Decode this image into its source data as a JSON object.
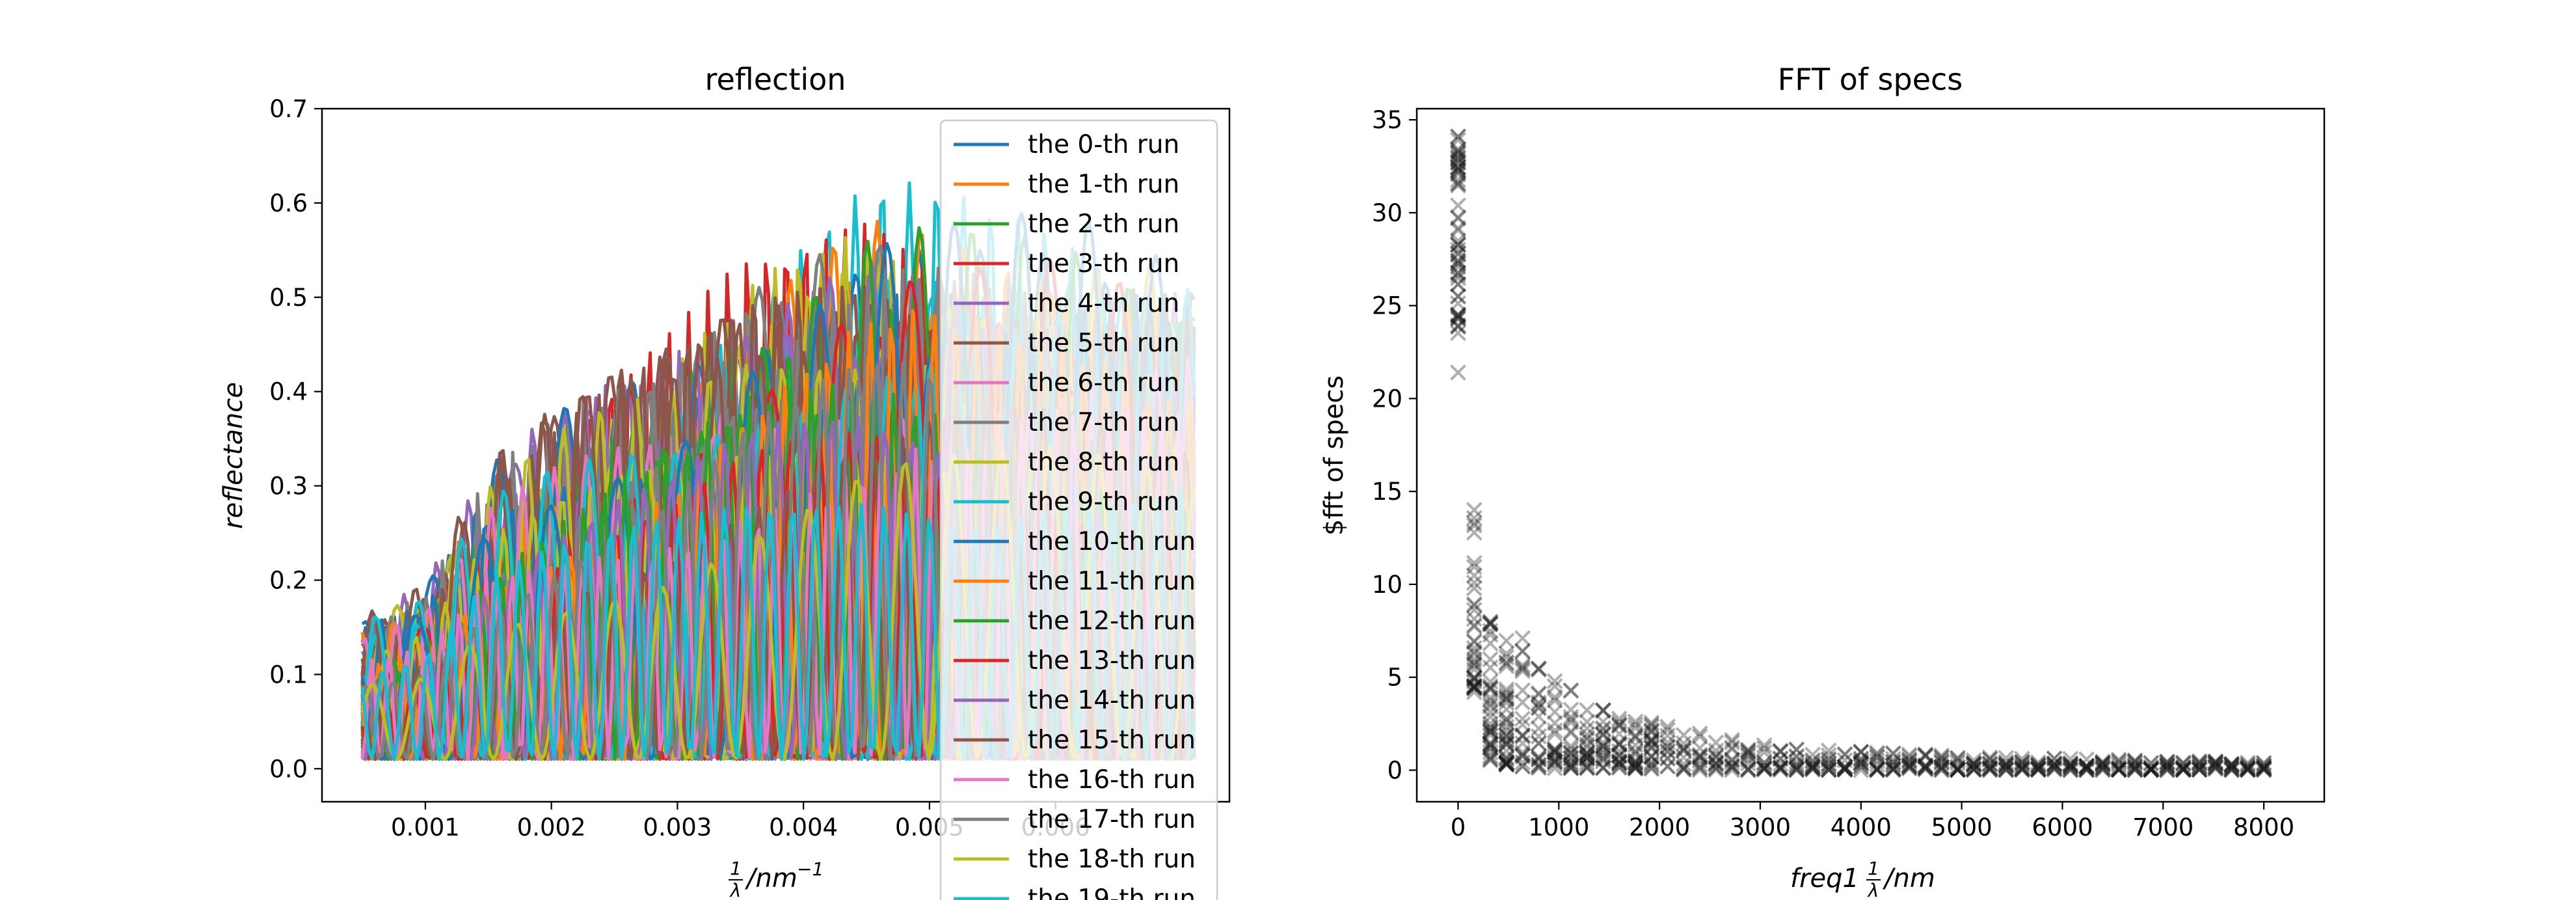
{
  "chart_data": [
    {
      "type": "line",
      "title": "reflection",
      "ylabel": "reflectance",
      "xlabel": {
        "frac": "1",
        "den": "λ",
        "unit": "/nm",
        "sup": "−1"
      },
      "xlim": [
        0.00018,
        0.00738
      ],
      "ylim": [
        -0.035,
        0.7
      ],
      "xticks": [
        0.001,
        0.002,
        0.003,
        0.004,
        0.005,
        0.006
      ],
      "xtick_labels": [
        "0.001",
        "0.002",
        "0.003",
        "0.004",
        "0.005",
        "0.006"
      ],
      "yticks": [
        0.0,
        0.1,
        0.2,
        0.3,
        0.4,
        0.5,
        0.6,
        0.7
      ],
      "ytick_labels": [
        "0.0",
        "0.1",
        "0.2",
        "0.3",
        "0.4",
        "0.5",
        "0.6",
        "0.7"
      ],
      "legend_position": "upper-right",
      "legend_entries": [
        "the 0-th run",
        "the 1-th run",
        "the 2-th run",
        "the 3-th run",
        "the 4-th run",
        "the 5-th run",
        "the 6-th run",
        "the 7-th run",
        "the 8-th run",
        "the 9-th run",
        "the 10-th run",
        "the 11-th run",
        "the 12-th run",
        "the 13-th run",
        "the 14-th run",
        "the 15-th run",
        "the 16-th run",
        "the 17-th run",
        "the 18-th run",
        "the 19-th run"
      ],
      "colors": [
        "#1f77b4",
        "#ff7f0e",
        "#2ca02c",
        "#d62728",
        "#9467bd",
        "#8c564b",
        "#e377c2",
        "#7f7f7f",
        "#bcbd22",
        "#17becf"
      ],
      "x_range": [
        0.0005,
        0.0071
      ],
      "series_count": 100,
      "y_envelope": {
        "x": [
          0.0005,
          0.001,
          0.0015,
          0.002,
          0.0025,
          0.003,
          0.0035,
          0.004,
          0.0045,
          0.005,
          0.0055,
          0.006,
          0.0065,
          0.0071
        ],
        "ymax": [
          0.17,
          0.2,
          0.33,
          0.39,
          0.44,
          0.48,
          0.55,
          0.59,
          0.63,
          0.62,
          0.6,
          0.6,
          0.58,
          0.56
        ]
      }
    },
    {
      "type": "scatter",
      "title": "FFT of specs",
      "ylabel": "$fft of specs",
      "xlabel": {
        "prefix": "freq1",
        "frac": "1",
        "den": "λ",
        "unit": "/nm"
      },
      "xlim": [
        -410,
        8600
      ],
      "ylim": [
        -1.7,
        35.6
      ],
      "xticks": [
        0,
        1000,
        2000,
        3000,
        4000,
        5000,
        6000,
        7000,
        8000
      ],
      "xtick_labels": [
        "0",
        "1000",
        "2000",
        "3000",
        "4000",
        "5000",
        "6000",
        "7000",
        "8000"
      ],
      "yticks": [
        0,
        5,
        10,
        15,
        20,
        25,
        30,
        35
      ],
      "ytick_labels": [
        "0",
        "5",
        "10",
        "15",
        "20",
        "25",
        "30",
        "35"
      ],
      "marker": "x",
      "marker_color": "#1a1a1a",
      "points": {
        "dc_x": 0,
        "dc_y_range": [
          21.4,
          34.1
        ],
        "x_step": 160,
        "x_max": 8120,
        "y_band_at_x": [
          [
            160,
            4.2,
            14.3
          ],
          [
            320,
            0.5,
            8.4
          ],
          [
            480,
            0.3,
            8.3
          ],
          [
            800,
            0.1,
            6.0
          ],
          [
            1200,
            0.1,
            4.0
          ],
          [
            1600,
            0.1,
            3.0
          ],
          [
            2400,
            0.0,
            2.0
          ],
          [
            3200,
            0.0,
            1.2
          ],
          [
            4800,
            0.0,
            0.8
          ],
          [
            8120,
            0.0,
            0.4
          ]
        ]
      }
    }
  ]
}
